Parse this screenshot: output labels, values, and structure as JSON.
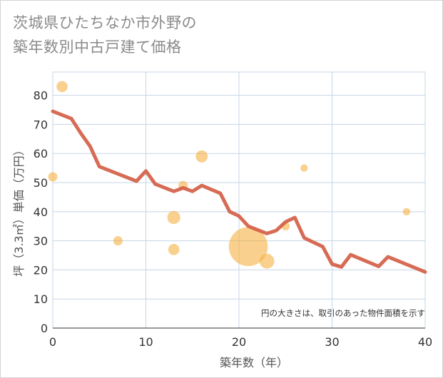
{
  "chart_data": {
    "type": "scatter+line",
    "title_line1": "茨城県ひたちなか市外野の",
    "title_line2": "築年数別中古戸建て価格",
    "xlabel": "築年数（年）",
    "ylabel": "坪（3.3㎡）単価（万円）",
    "xlim": [
      0,
      40
    ],
    "ylim": [
      0,
      88
    ],
    "xticks": [
      0,
      10,
      20,
      30,
      40
    ],
    "yticks": [
      0,
      10,
      20,
      30,
      40,
      50,
      60,
      70,
      80
    ],
    "note": "円の大きさは、取引のあった物件面積を示す",
    "colors": {
      "bubble": "#f5b041",
      "line": "#d35c44",
      "grid": "#c5d5e5"
    },
    "bubbles": [
      {
        "x": 0,
        "y": 52,
        "size": 1
      },
      {
        "x": 1,
        "y": 83,
        "size": 1.2
      },
      {
        "x": 7,
        "y": 30,
        "size": 1
      },
      {
        "x": 13,
        "y": 38,
        "size": 1.4
      },
      {
        "x": 13,
        "y": 27,
        "size": 1.2
      },
      {
        "x": 14,
        "y": 49,
        "size": 1
      },
      {
        "x": 16,
        "y": 59,
        "size": 1.3
      },
      {
        "x": 21,
        "y": 28,
        "size": 4.2
      },
      {
        "x": 23,
        "y": 23,
        "size": 1.6
      },
      {
        "x": 25,
        "y": 35,
        "size": 0.9
      },
      {
        "x": 27,
        "y": 55,
        "size": 0.8
      },
      {
        "x": 38,
        "y": 40,
        "size": 0.8
      }
    ],
    "trend": [
      {
        "x": 0,
        "y": 74.5
      },
      {
        "x": 2,
        "y": 72
      },
      {
        "x": 3,
        "y": 67
      },
      {
        "x": 4,
        "y": 62.5
      },
      {
        "x": 5,
        "y": 55.5
      },
      {
        "x": 7,
        "y": 53
      },
      {
        "x": 9,
        "y": 50.5
      },
      {
        "x": 10,
        "y": 54
      },
      {
        "x": 11,
        "y": 49.5
      },
      {
        "x": 13,
        "y": 47
      },
      {
        "x": 14,
        "y": 48.2
      },
      {
        "x": 15,
        "y": 47
      },
      {
        "x": 16,
        "y": 49
      },
      {
        "x": 18,
        "y": 46.3
      },
      {
        "x": 19,
        "y": 40
      },
      {
        "x": 20,
        "y": 38.5
      },
      {
        "x": 21,
        "y": 35
      },
      {
        "x": 23,
        "y": 32.5
      },
      {
        "x": 24,
        "y": 33.5
      },
      {
        "x": 25,
        "y": 36.5
      },
      {
        "x": 26,
        "y": 38
      },
      {
        "x": 27,
        "y": 31
      },
      {
        "x": 28,
        "y": 29.5
      },
      {
        "x": 29,
        "y": 28
      },
      {
        "x": 30,
        "y": 22
      },
      {
        "x": 31,
        "y": 21
      },
      {
        "x": 32,
        "y": 25.2
      },
      {
        "x": 35,
        "y": 21.2
      },
      {
        "x": 36,
        "y": 24.5
      },
      {
        "x": 40,
        "y": 19.3
      }
    ]
  }
}
